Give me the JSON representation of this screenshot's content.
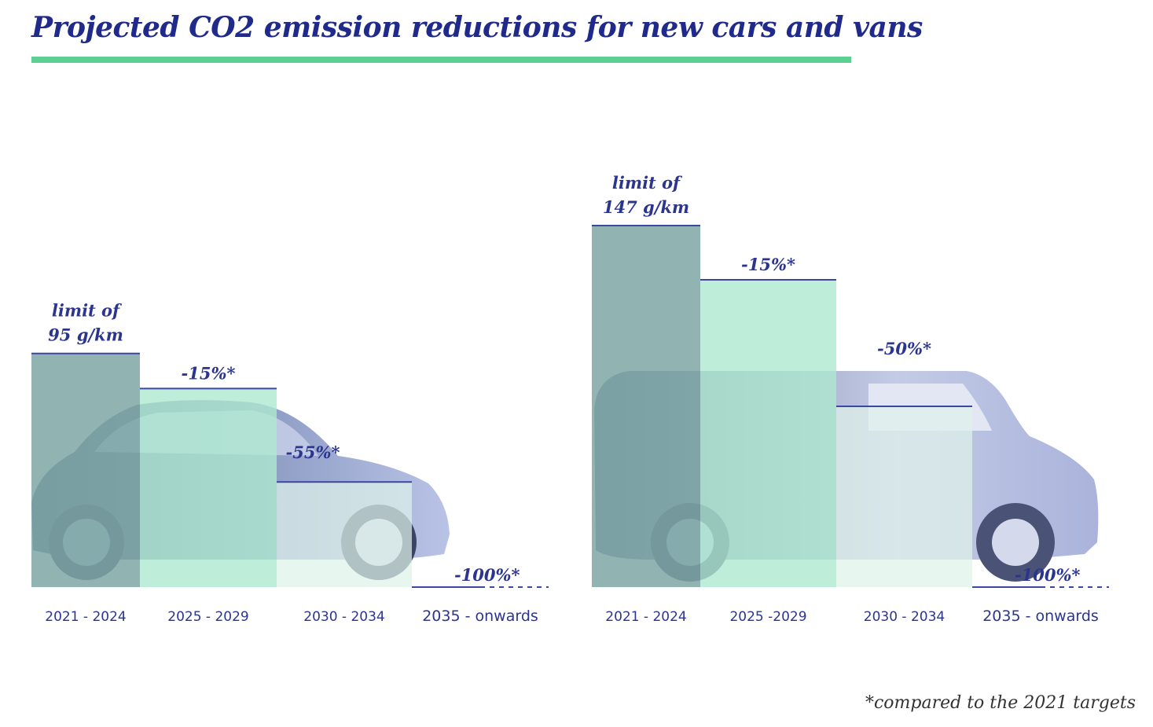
{
  "title": "Projected CO2 emission reductions for new cars and vans",
  "footnote": "*compared to the 2021 targets",
  "colors": {
    "title": "#1f2a8a",
    "accent_rule": "#5ccf93",
    "dark_bar": "#7ea7a6",
    "mid_bar": "#aee9cf",
    "light_bar": "#dff3ea",
    "label": "#2b3590"
  },
  "chart_data": [
    {
      "type": "bar",
      "name": "cars",
      "categories": [
        "2021 - 2024",
        "2025 - 2029",
        "2030 - 2034",
        "2035 - onwards"
      ],
      "values": [
        95,
        80.75,
        42.75,
        0
      ],
      "reductions_pct": [
        0,
        -15,
        -55,
        -100
      ],
      "labels": [
        "limit of\n95 g/km",
        "-15%*",
        "-55%*",
        "-100%*"
      ],
      "unit": "g/km",
      "ylim": [
        0,
        147
      ]
    },
    {
      "type": "bar",
      "name": "vans",
      "categories": [
        "2021 - 2024",
        "2025 -2029",
        "2030 - 2034",
        "2035 - onwards"
      ],
      "values": [
        147,
        124.95,
        73.5,
        0
      ],
      "reductions_pct": [
        0,
        -15,
        -50,
        -100
      ],
      "labels": [
        "limit of\n147 g/km",
        "-15%*",
        "-50%*",
        "-100%*"
      ],
      "unit": "g/km",
      "ylim": [
        0,
        147
      ]
    }
  ]
}
